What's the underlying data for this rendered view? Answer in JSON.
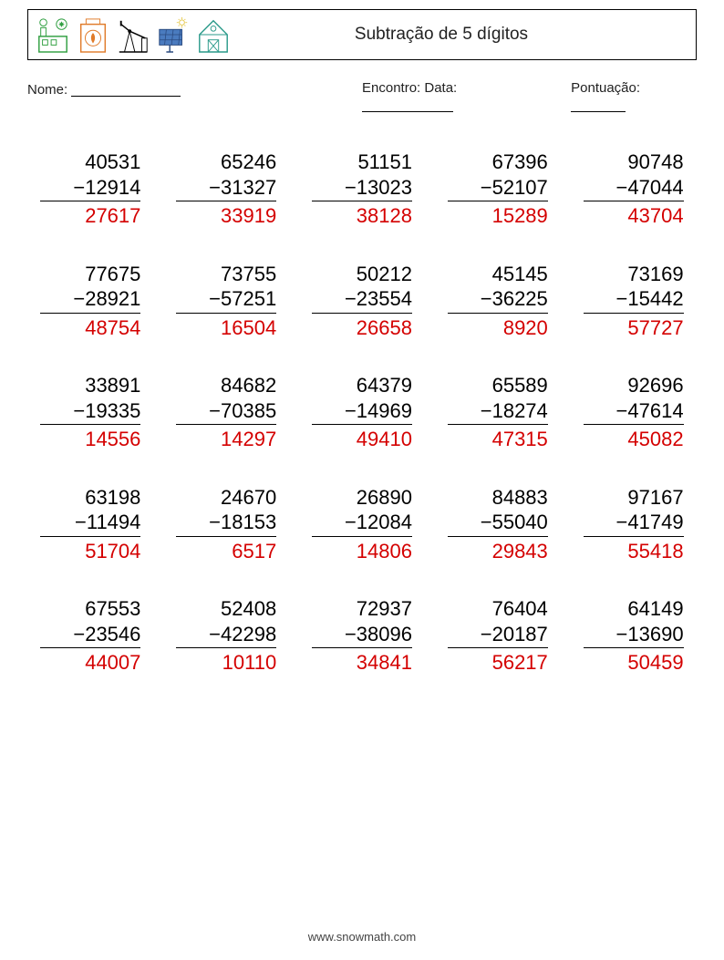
{
  "title": "Subtração de 5 dígitos",
  "labels": {
    "name": "Nome:",
    "encounter": "Encontro: Data:",
    "score": "Pontuação:"
  },
  "colors": {
    "answer": "#d40000",
    "text": "#000000",
    "icon_green": "#2e9e3f",
    "icon_orange": "#e07b2a",
    "icon_yellow": "#e6c84a",
    "icon_blue": "#4a7bbf",
    "icon_teal": "#2a9a8a"
  },
  "footer": "www.snowmath.com",
  "problems": [
    {
      "a": "40531",
      "b": "12914",
      "ans": "27617"
    },
    {
      "a": "65246",
      "b": "31327",
      "ans": "33919"
    },
    {
      "a": "51151",
      "b": "13023",
      "ans": "38128"
    },
    {
      "a": "67396",
      "b": "52107",
      "ans": "15289"
    },
    {
      "a": "90748",
      "b": "47044",
      "ans": "43704"
    },
    {
      "a": "77675",
      "b": "28921",
      "ans": "48754"
    },
    {
      "a": "73755",
      "b": "57251",
      "ans": "16504"
    },
    {
      "a": "50212",
      "b": "23554",
      "ans": "26658"
    },
    {
      "a": "45145",
      "b": "36225",
      "ans": "8920"
    },
    {
      "a": "73169",
      "b": "15442",
      "ans": "57727"
    },
    {
      "a": "33891",
      "b": "19335",
      "ans": "14556"
    },
    {
      "a": "84682",
      "b": "70385",
      "ans": "14297"
    },
    {
      "a": "64379",
      "b": "14969",
      "ans": "49410"
    },
    {
      "a": "65589",
      "b": "18274",
      "ans": "47315"
    },
    {
      "a": "92696",
      "b": "47614",
      "ans": "45082"
    },
    {
      "a": "63198",
      "b": "11494",
      "ans": "51704"
    },
    {
      "a": "24670",
      "b": "18153",
      "ans": "6517"
    },
    {
      "a": "26890",
      "b": "12084",
      "ans": "14806"
    },
    {
      "a": "84883",
      "b": "55040",
      "ans": "29843"
    },
    {
      "a": "97167",
      "b": "41749",
      "ans": "55418"
    },
    {
      "a": "67553",
      "b": "23546",
      "ans": "44007"
    },
    {
      "a": "52408",
      "b": "42298",
      "ans": "10110"
    },
    {
      "a": "72937",
      "b": "38096",
      "ans": "34841"
    },
    {
      "a": "76404",
      "b": "20187",
      "ans": "56217"
    },
    {
      "a": "64149",
      "b": "13690",
      "ans": "50459"
    }
  ]
}
